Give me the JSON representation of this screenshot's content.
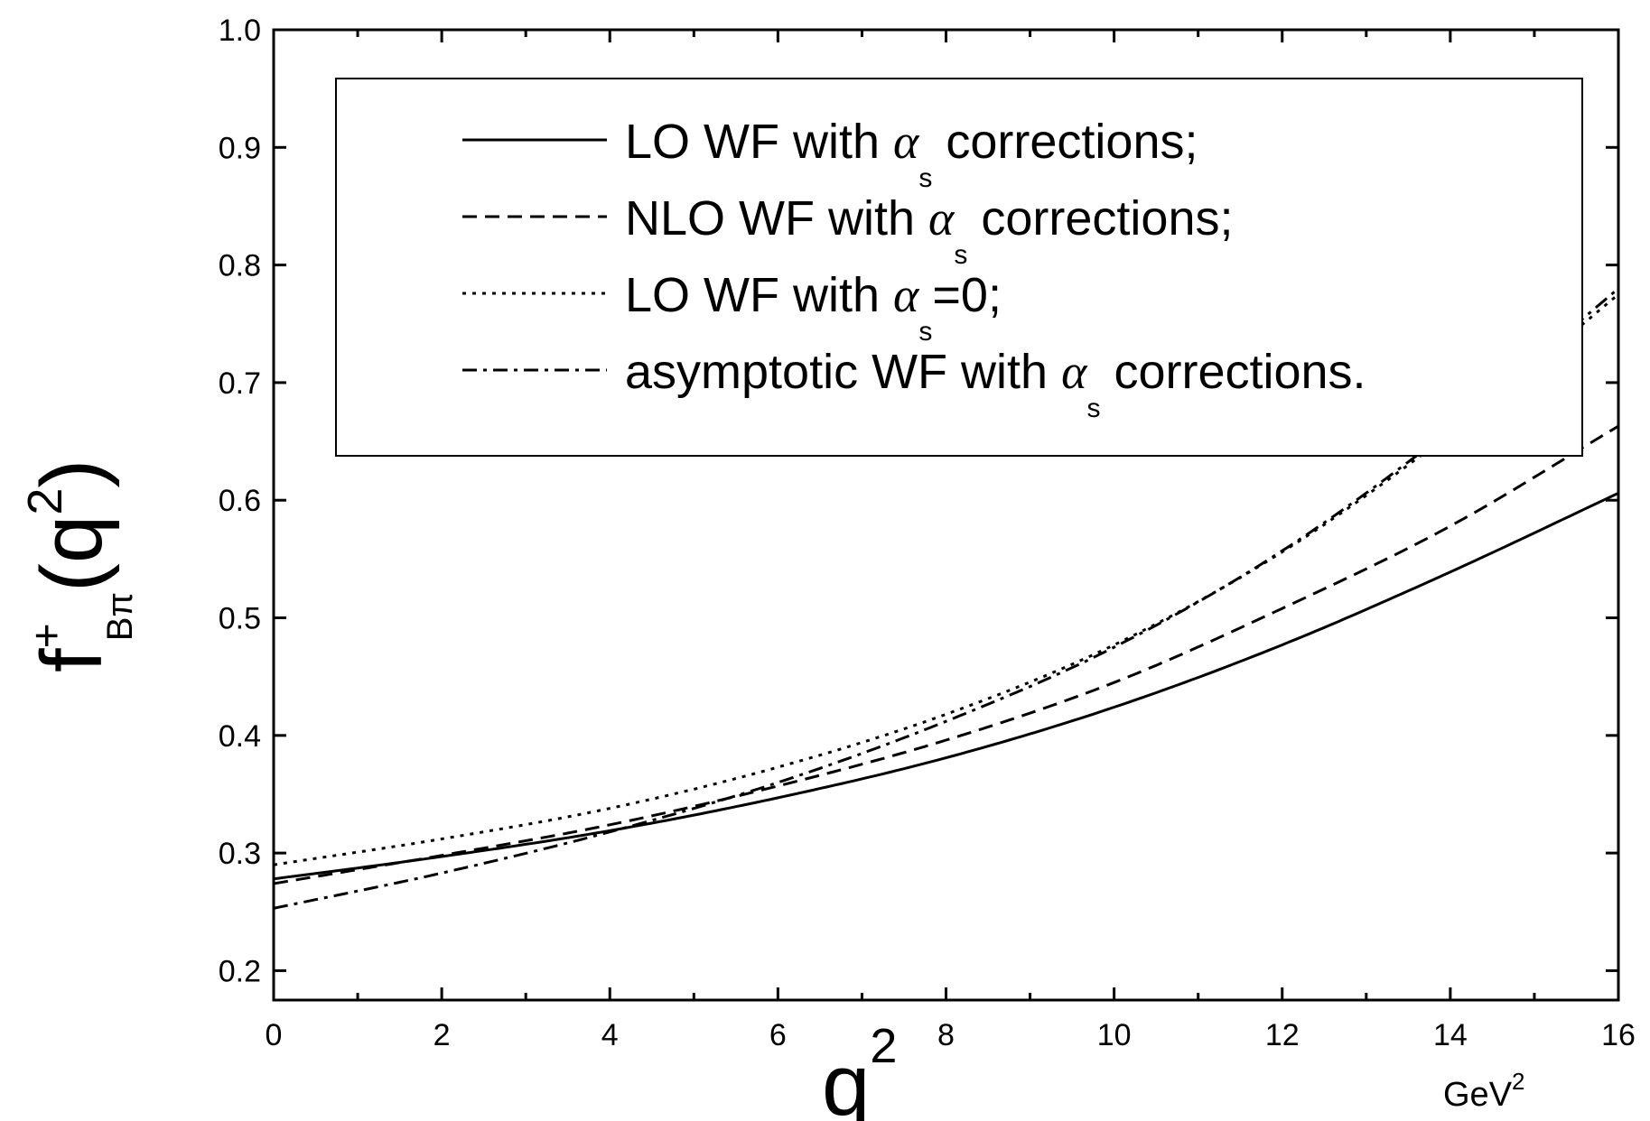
{
  "chart_data": {
    "type": "line",
    "xlabel": {
      "base": "q",
      "sup": "2",
      "unit_base": "GeV",
      "unit_sup": "2"
    },
    "ylabel": {
      "base": "f",
      "sup": "+",
      "sub": "Bπ",
      "arg_open": "(q",
      "arg_sup": "2",
      "arg_close": ")"
    },
    "xlim": [
      0,
      16
    ],
    "ylim": [
      0.175,
      1.0
    ],
    "xticks": [
      0,
      2,
      4,
      6,
      8,
      10,
      12,
      14,
      16
    ],
    "yticks": [
      0.2,
      0.3,
      0.4,
      0.5,
      0.6,
      0.7,
      0.8,
      0.9,
      1.0
    ],
    "xtick_labels": [
      "0",
      "2",
      "4",
      "6",
      "8",
      "10",
      "12",
      "14",
      "16"
    ],
    "ytick_labels": [
      "0.2",
      "0.3",
      "0.4",
      "0.5",
      "0.6",
      "0.7",
      "0.8",
      "0.9",
      "1.0"
    ],
    "grid": false,
    "legend_position": "top",
    "x": [
      0,
      2,
      4,
      6,
      8,
      10,
      12,
      14,
      16
    ],
    "series": [
      {
        "style": "solid",
        "legend": {
          "pre": "LO WF with ",
          "greek": "α",
          "sub": "s",
          "post": " corrections;"
        },
        "values": [
          0.278,
          0.297,
          0.319,
          0.347,
          0.381,
          0.424,
          0.477,
          0.539,
          0.606
        ]
      },
      {
        "style": "dashed",
        "legend": {
          "pre": "NLO WF with ",
          "greek": "α",
          "sub": "s",
          "post": " corrections;"
        },
        "values": [
          0.274,
          0.298,
          0.324,
          0.357,
          0.396,
          0.445,
          0.508,
          0.578,
          0.663
        ]
      },
      {
        "style": "dotted",
        "legend": {
          "pre": "LO WF with ",
          "greek": "α",
          "sub": "s",
          "post": "=0;"
        },
        "values": [
          0.29,
          0.312,
          0.338,
          0.373,
          0.418,
          0.477,
          0.556,
          0.657,
          0.775
        ]
      },
      {
        "style": "dashdot",
        "legend": {
          "pre": "asymptotic WF with ",
          "greek": "α",
          "sub": "s",
          "post": " corrections."
        },
        "values": [
          0.253,
          0.283,
          0.318,
          0.36,
          0.412,
          0.475,
          0.557,
          0.66,
          0.78
        ]
      }
    ],
    "colors": {
      "line": "#000000",
      "background": "#ffffff"
    }
  }
}
